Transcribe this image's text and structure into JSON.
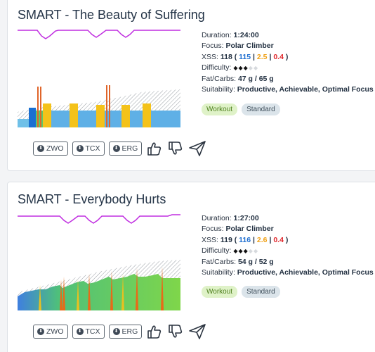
{
  "workouts": [
    {
      "title": "SMART - The Beauty of Suffering",
      "duration_label": "Duration:",
      "duration": "1:24:00",
      "focus_label": "Focus:",
      "focus": "Polar Climber",
      "xss_label": "XSS:",
      "xss": "118",
      "xss_low": "115",
      "xss_high": "2.5",
      "xss_peak": "0.4",
      "difficulty_label": "Difficulty:",
      "difficulty": 3,
      "difficulty_max": 5,
      "fatcarbs_label": "Fat/Carbs:",
      "fatcarbs": "47 g / 65 g",
      "suitability_label": "Suitability:",
      "suitability": "Productive, Achievable, Optimal Focus",
      "tags": [
        "Workout",
        "Standard"
      ],
      "buttons": [
        "ZWO",
        "TCX",
        "ERG"
      ]
    },
    {
      "title": "SMART - Everybody Hurts",
      "duration_label": "Duration:",
      "duration": "1:27:00",
      "focus_label": "Focus:",
      "focus": "Polar Climber",
      "xss_label": "XSS:",
      "xss": "119",
      "xss_low": "116",
      "xss_high": "2.6",
      "xss_peak": "0.4",
      "difficulty_label": "Difficulty:",
      "difficulty": 3,
      "difficulty_max": 5,
      "fatcarbs_label": "Fat/Carbs:",
      "fatcarbs": "54 g / 52 g",
      "suitability_label": "Suitability:",
      "suitability": "Productive, Achievable, Optimal Focus",
      "tags": [
        "Workout",
        "Standard"
      ],
      "buttons": [
        "ZWO",
        "TCX",
        "ERG"
      ]
    }
  ],
  "icons": {
    "download": "download-circle-icon",
    "like": "thumbs-up-icon",
    "dislike": "thumbs-down-icon",
    "send": "paper-plane-icon"
  },
  "colors": {
    "accent_purple": "#c02ee0",
    "xss_blue": "#1f6fd1",
    "xss_orange": "#f0a014",
    "xss_red": "#e0262b",
    "tag_workout_bg": "#dff2c8",
    "tag_standard_bg": "#dbe4ea"
  }
}
